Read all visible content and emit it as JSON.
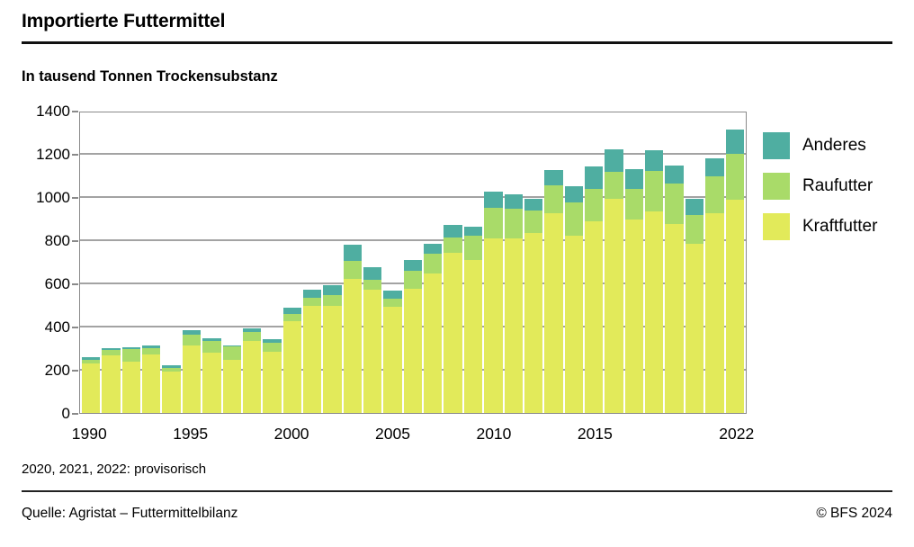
{
  "header": {
    "title": "Importierte Futtermittel",
    "subtitle": "In tausend Tonnen Trockensubstanz"
  },
  "chart_data": {
    "type": "bar",
    "stacked": true,
    "title": "Importierte Futtermittel",
    "ylabel": "In tausend Tonnen Trockensubstanz",
    "xlabel": "",
    "grid": "horizontal",
    "legend_position": "right",
    "ylim": [
      0,
      1400
    ],
    "yticks": [
      0,
      200,
      400,
      600,
      800,
      1000,
      1200,
      1400
    ],
    "xticks": [
      1990,
      1995,
      2000,
      2005,
      2010,
      2015,
      2022
    ],
    "categories": [
      1990,
      1991,
      1992,
      1993,
      1994,
      1995,
      1996,
      1997,
      1998,
      1999,
      2000,
      2001,
      2002,
      2003,
      2004,
      2005,
      2006,
      2007,
      2008,
      2009,
      2010,
      2011,
      2012,
      2013,
      2014,
      2015,
      2016,
      2017,
      2018,
      2019,
      2020,
      2021,
      2022
    ],
    "series": [
      {
        "name": "Kraftfutter",
        "color": "#E2EA5A",
        "values": [
          230,
          265,
          238,
          270,
          192,
          312,
          278,
          245,
          333,
          285,
          424,
          497,
          497,
          622,
          569,
          493,
          576,
          646,
          743,
          708,
          810,
          810,
          833,
          924,
          820,
          889,
          990,
          896,
          935,
          875,
          785,
          924,
          986
        ]
      },
      {
        "name": "Raufutter",
        "color": "#A9DB69",
        "values": [
          15,
          25,
          56,
          29,
          16,
          49,
          55,
          62,
          42,
          42,
          34,
          38,
          51,
          83,
          49,
          35,
          83,
          90,
          70,
          111,
          139,
          135,
          104,
          132,
          153,
          149,
          125,
          140,
          188,
          187,
          132,
          171,
          215
        ]
      },
      {
        "name": "Anderes",
        "color": "#4FAEA1",
        "values": [
          15,
          12,
          11,
          13,
          12,
          21,
          14,
          6,
          17,
          14,
          31,
          38,
          42,
          75,
          56,
          38,
          49,
          49,
          58,
          44,
          75,
          69,
          56,
          69,
          79,
          104,
          108,
          92,
          92,
          86,
          76,
          86,
          111
        ]
      }
    ]
  },
  "legend": {
    "items": [
      {
        "label": "Anderes",
        "color": "#4FAEA1"
      },
      {
        "label": "Raufutter",
        "color": "#A9DB69"
      },
      {
        "label": "Kraftfutter",
        "color": "#E2EA5A"
      }
    ]
  },
  "footnote": "2020, 2021, 2022: provisorisch",
  "footer": {
    "source": "Quelle: Agristat – Futtermittelbilanz",
    "copyright": "© BFS 2024"
  }
}
